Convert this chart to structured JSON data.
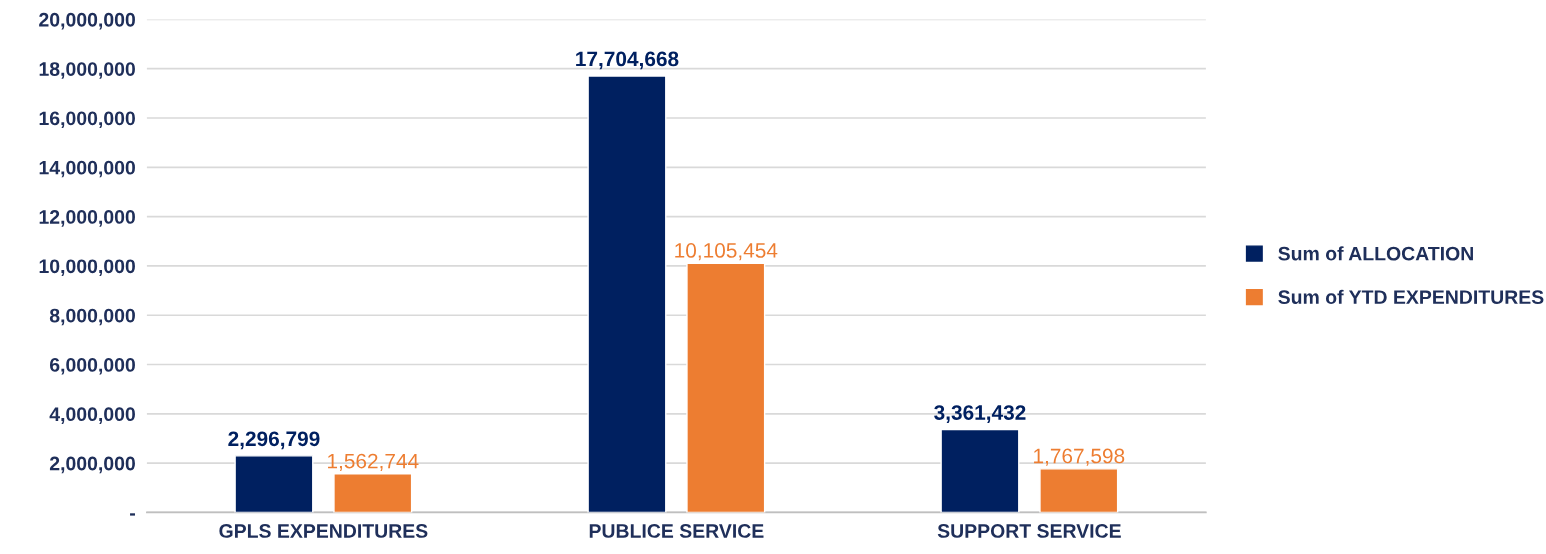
{
  "chart_data": {
    "type": "bar",
    "categories": [
      "GPLS EXPENDITURES",
      "PUBLICE SERVICE",
      "SUPPORT SERVICE"
    ],
    "series": [
      {
        "name": "Sum of ALLOCATION",
        "color": "#002060",
        "values": [
          2296799,
          17704668,
          3361432
        ],
        "value_labels": [
          "2,296,799",
          "17,704,668",
          "3,361,432"
        ]
      },
      {
        "name": "Sum of YTD EXPENDITURES",
        "color": "#ed7d31",
        "values": [
          1562744,
          10105454,
          1767598
        ],
        "value_labels": [
          "1,562,744",
          "10,105,454",
          "1,767,598"
        ]
      }
    ],
    "ylim": [
      0,
      20000000
    ],
    "yticks": [
      {
        "value": 0,
        "label": "-"
      },
      {
        "value": 2000000,
        "label": "2,000,000"
      },
      {
        "value": 4000000,
        "label": "4,000,000"
      },
      {
        "value": 6000000,
        "label": "6,000,000"
      },
      {
        "value": 8000000,
        "label": "8,000,000"
      },
      {
        "value": 10000000,
        "label": "10,000,000"
      },
      {
        "value": 12000000,
        "label": "12,000,000"
      },
      {
        "value": 14000000,
        "label": "14,000,000"
      },
      {
        "value": 16000000,
        "label": "16,000,000"
      },
      {
        "value": 18000000,
        "label": "18,000,000"
      },
      {
        "value": 20000000,
        "label": "20,000,000"
      }
    ],
    "grid": "y",
    "legend": "right"
  }
}
